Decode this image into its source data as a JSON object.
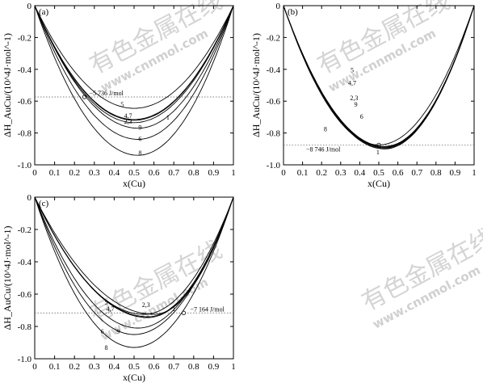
{
  "watermark": {
    "text": "有色金属在线",
    "url": "www.cnnmol.com"
  },
  "chart_data": [
    {
      "panel": "(a)",
      "type": "line",
      "xlabel": "x(Cu)",
      "ylabel": "ΔH_AuCu/(10^4J·mol^-1)",
      "xlim": [
        0,
        1
      ],
      "ylim": [
        -1.0,
        0
      ],
      "xticks": [
        "0",
        "0.1",
        "0.2",
        "0.3",
        "0.4",
        "0.5",
        "0.6",
        "0.7",
        "0.8",
        "0.9",
        "1"
      ],
      "yticks": [
        "0",
        "-0.2",
        "-0.4",
        "-0.6",
        "-0.8",
        "-1.0"
      ],
      "reference": {
        "value": -0.5736,
        "label": "−5 736 J/mol",
        "x": 0.25
      },
      "series": [
        {
          "name": "5",
          "xmin": 0.5,
          "ymin": -0.645
        },
        {
          "name": "4,7",
          "xmin": 0.5,
          "ymin": -0.715
        },
        {
          "name": "2,3",
          "xmin": 0.5,
          "ymin": -0.735
        },
        {
          "name": "1",
          "xmin": 0.5,
          "ymin": -0.72
        },
        {
          "name": "9",
          "xmin": 0.52,
          "ymin": -0.77
        },
        {
          "name": "6",
          "xmin": 0.52,
          "ymin": -0.84
        },
        {
          "name": "8",
          "xmin": 0.52,
          "ymin": -0.94
        }
      ],
      "labels": [
        {
          "text": "5",
          "x": 0.44,
          "y": -0.635
        },
        {
          "text": "4,7",
          "x": 0.47,
          "y": -0.705
        },
        {
          "text": "2,3",
          "x": 0.47,
          "y": -0.74
        },
        {
          "text": "1",
          "x": 0.67,
          "y": -0.715
        },
        {
          "text": "9",
          "x": 0.53,
          "y": -0.78
        },
        {
          "text": "6",
          "x": 0.53,
          "y": -0.85
        },
        {
          "text": "8",
          "x": 0.53,
          "y": -0.94
        }
      ]
    },
    {
      "panel": "(b)",
      "type": "line",
      "xlabel": "x(Cu)",
      "ylabel": "ΔH_AuCu/(10^4J·mol^-1)",
      "xlim": [
        0,
        1
      ],
      "ylim": [
        -1.0,
        0
      ],
      "xticks": [
        "0",
        "0.1",
        "0.2",
        "0.3",
        "0.4",
        "0.5",
        "0.6",
        "0.7",
        "0.8",
        "0.9",
        "1"
      ],
      "yticks": [
        "0",
        "-0.2",
        "-0.4",
        "-0.6",
        "-0.8",
        "-1.0"
      ],
      "reference": {
        "value": -0.8746,
        "label": "−8 746 J/mol",
        "x": 0.5
      },
      "series": [
        {
          "name": "5",
          "xmin": 0.53,
          "ymin": -0.885
        },
        {
          "name": "4,7",
          "xmin": 0.53,
          "ymin": -0.885
        },
        {
          "name": "2,3",
          "xmin": 0.53,
          "ymin": -0.89
        },
        {
          "name": "9",
          "xmin": 0.53,
          "ymin": -0.89
        },
        {
          "name": "6",
          "xmin": 0.53,
          "ymin": -0.895
        },
        {
          "name": "8",
          "xmin": 0.53,
          "ymin": -0.9
        },
        {
          "name": "1",
          "xmin": 0.5,
          "ymin": -0.8746
        }
      ],
      "labels": [
        {
          "text": "5",
          "x": 0.36,
          "y": -0.42
        },
        {
          "text": "4,7",
          "x": 0.36,
          "y": -0.5
        },
        {
          "text": "2,3",
          "x": 0.37,
          "y": -0.595
        },
        {
          "text": "9",
          "x": 0.38,
          "y": -0.635
        },
        {
          "text": "6",
          "x": 0.41,
          "y": -0.71
        },
        {
          "text": "8",
          "x": 0.22,
          "y": -0.79
        },
        {
          "text": "1",
          "x": 0.495,
          "y": -0.935
        }
      ]
    },
    {
      "panel": "(c)",
      "type": "line",
      "xlabel": "x(Cu)",
      "ylabel": "ΔH_AuCu/(10^4J·mol^-1)",
      "xlim": [
        0,
        1
      ],
      "ylim": [
        -1.0,
        0
      ],
      "xticks": [
        "0",
        "0.1",
        "0.2",
        "0.3",
        "0.4",
        "0.5",
        "0.6",
        "0.7",
        "0.8",
        "0.9",
        "1"
      ],
      "yticks": [
        "0",
        "-0.2",
        "-0.4",
        "-0.6",
        "-0.8",
        "-1.0"
      ],
      "reference": {
        "value": -0.7164,
        "label": "−7 164 J/mol",
        "x": 0.75
      },
      "series": [
        {
          "name": "5",
          "xmin": 0.55,
          "ymin": -0.725
        },
        {
          "name": "2,3",
          "xmin": 0.57,
          "ymin": -0.74
        },
        {
          "name": "4,7",
          "xmin": 0.57,
          "ymin": -0.745
        },
        {
          "name": "1",
          "xmin": 0.6,
          "ymin": -0.725
        },
        {
          "name": "9",
          "xmin": 0.52,
          "ymin": -0.81
        },
        {
          "name": "6",
          "xmin": 0.5,
          "ymin": -0.85
        },
        {
          "name": "8",
          "xmin": 0.5,
          "ymin": -0.93
        }
      ],
      "labels": [
        {
          "text": "5",
          "x": 0.36,
          "y": -0.665
        },
        {
          "text": "2,3",
          "x": 0.56,
          "y": -0.68
        },
        {
          "text": "4,7",
          "x": 0.38,
          "y": -0.705
        },
        {
          "text": "1",
          "x": 0.7,
          "y": -0.705
        },
        {
          "text": "9",
          "x": 0.42,
          "y": -0.845
        },
        {
          "text": "6",
          "x": 0.34,
          "y": -0.845
        },
        {
          "text": "8",
          "x": 0.36,
          "y": -0.945
        }
      ]
    }
  ]
}
